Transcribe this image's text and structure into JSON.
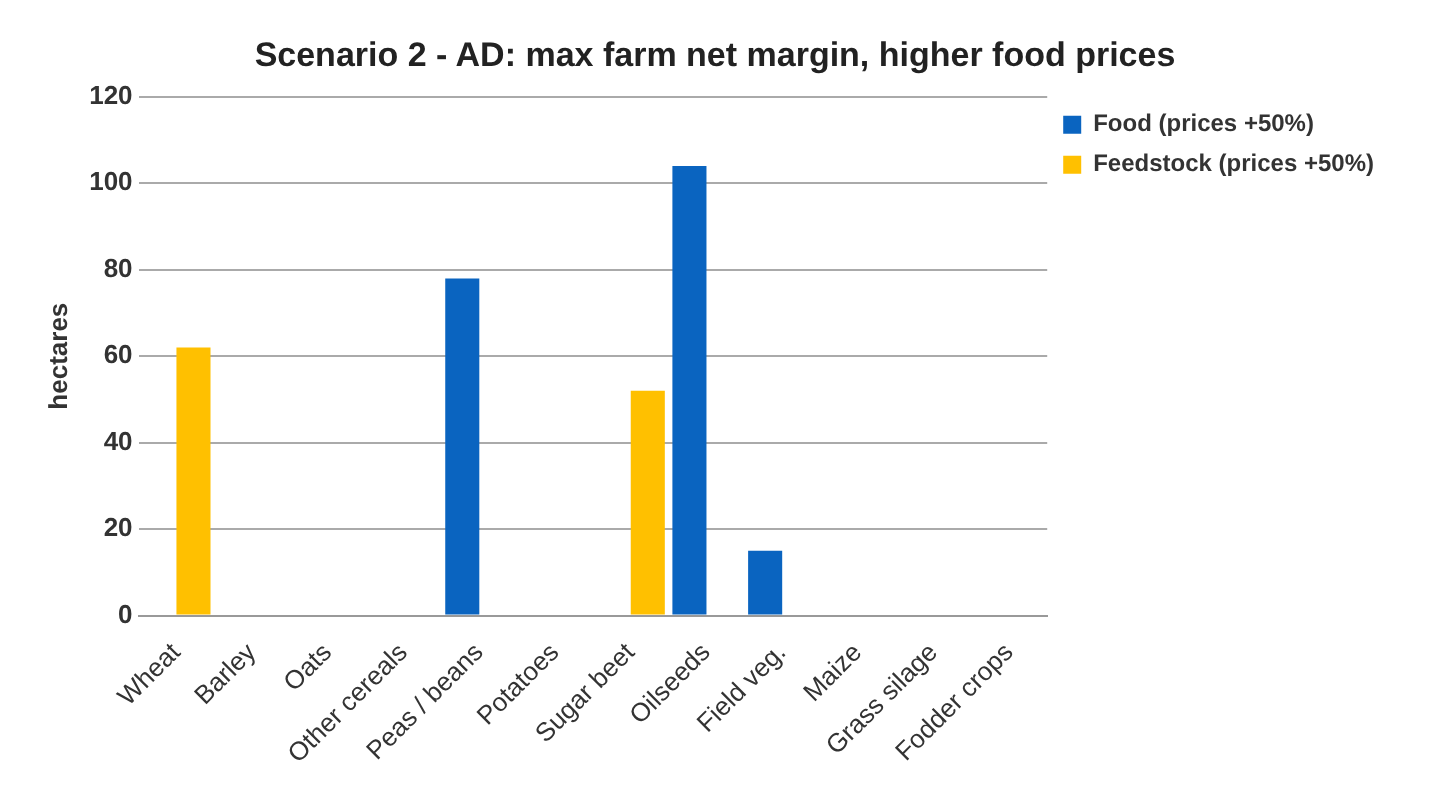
{
  "chart_data": {
    "type": "bar",
    "title": "Scenario 2 - AD: max farm net margin, higher food prices",
    "ylabel": "hectares",
    "categories": [
      "Wheat",
      "Barley",
      "Oats",
      "Other cereals",
      "Peas / beans",
      "Potatoes",
      "Sugar beet",
      "Oilseeds",
      "Field veg.",
      "Maize",
      "Grass silage",
      "Fodder crops"
    ],
    "series": [
      {
        "name": "Food (prices +50%)",
        "color": "#0a64c0",
        "values": [
          0,
          0,
          0,
          0,
          78,
          0,
          0,
          104,
          15,
          0,
          0,
          0
        ]
      },
      {
        "name": "Feedstock (prices +50%)",
        "color": "#ffc000",
        "values": [
          62,
          0,
          0,
          0,
          0,
          0,
          52,
          0,
          0,
          0,
          0,
          0
        ]
      }
    ],
    "ylim": [
      0,
      120
    ],
    "yticks": [
      0,
      20,
      40,
      60,
      80,
      100,
      120
    ],
    "grid": "y",
    "legend": "top right"
  }
}
